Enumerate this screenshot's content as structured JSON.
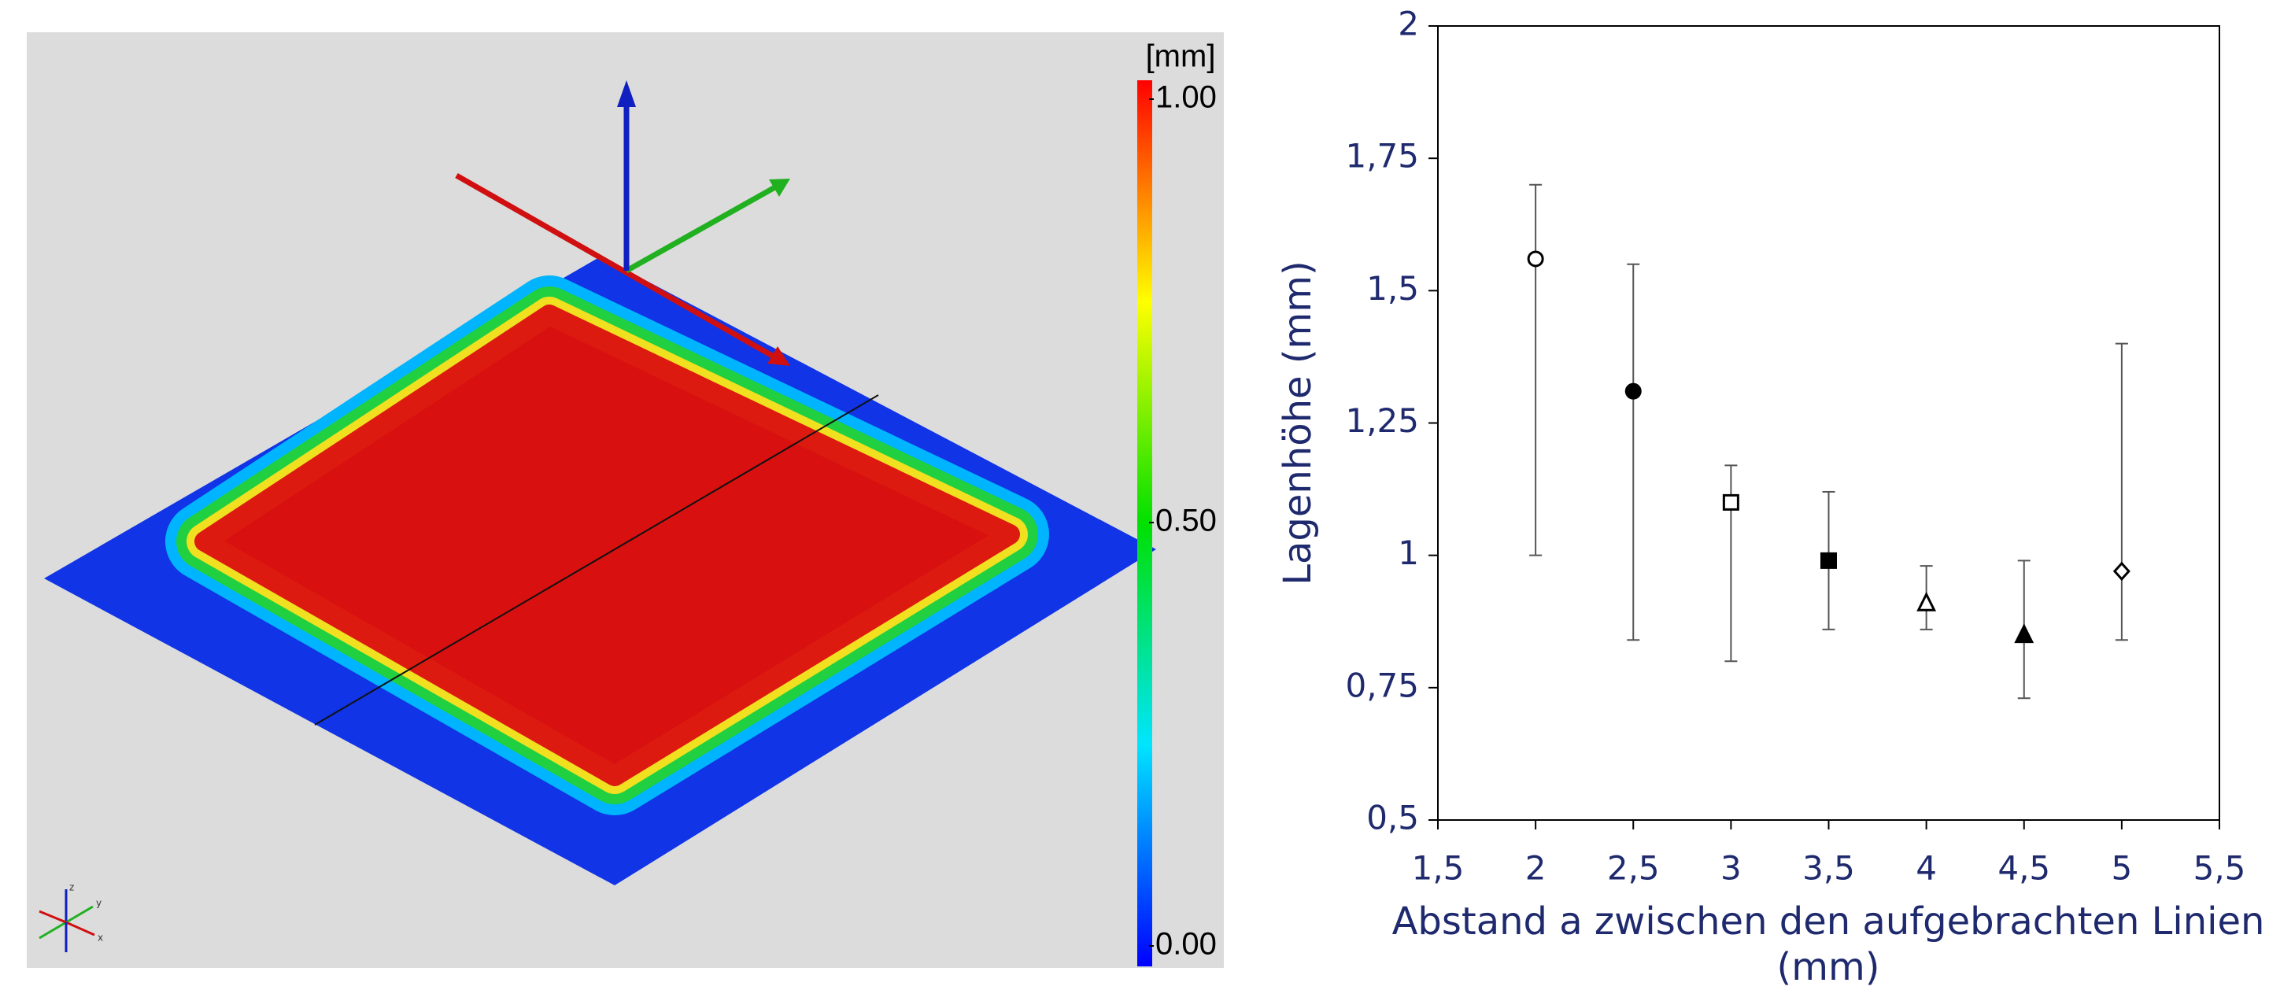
{
  "chart_data": [
    {
      "type": "surface",
      "colorbar": {
        "label": "[mm]",
        "lim": [
          0,
          1
        ],
        "ticks": [
          {
            "value": 1,
            "label": "1.00"
          },
          {
            "value": 0.5,
            "label": "0.50"
          },
          {
            "value": 0,
            "label": "0.00"
          }
        ],
        "colors": [
          "#0000ff",
          "#00e5ff",
          "#00e000",
          "#ffff00",
          "#ff0000"
        ]
      },
      "axis_labels": [
        "x",
        "y",
        "z"
      ]
    },
    {
      "type": "scatter",
      "y_label": "Lagenhöhe (mm)",
      "x_label": "Abstand a zwischen den aufgebrachten Linien (mm)",
      "x": [
        2,
        2.5,
        3,
        3.5,
        4,
        4.5,
        5
      ],
      "values": [
        1.56,
        1.31,
        1.1,
        0.99,
        0.91,
        0.85,
        0.97
      ],
      "lower": [
        1.0,
        0.84,
        0.8,
        0.86,
        0.86,
        0.73,
        0.84
      ],
      "upper": [
        1.7,
        1.55,
        1.17,
        1.12,
        0.98,
        0.99,
        1.4
      ],
      "markers": [
        "circle-open",
        "circle-filled",
        "square-open",
        "square-filled",
        "triangle-open",
        "triangle-filled",
        "diamond-open"
      ],
      "color": "#000000",
      "text_color": "#1f2a6e",
      "xlim": [
        1.5,
        5.5
      ],
      "ylim": [
        0.5,
        2
      ],
      "xticks": [
        {
          "value": 1.5,
          "label": "1,5"
        },
        2,
        {
          "value": 2.5,
          "label": "2,5"
        },
        3,
        {
          "value": 3.5,
          "label": "3,5"
        },
        4,
        {
          "value": 4.5,
          "label": "4,5"
        },
        5,
        {
          "value": 5.5,
          "label": "5,5"
        }
      ],
      "yticks": [
        {
          "value": 0.5,
          "label": "0,5"
        },
        {
          "value": 0.75,
          "label": "0,75"
        },
        1,
        {
          "value": 1.25,
          "label": "1,25"
        },
        {
          "value": 1.5,
          "label": "1,5"
        },
        {
          "value": 1.75,
          "label": "1,75"
        },
        2
      ]
    }
  ]
}
